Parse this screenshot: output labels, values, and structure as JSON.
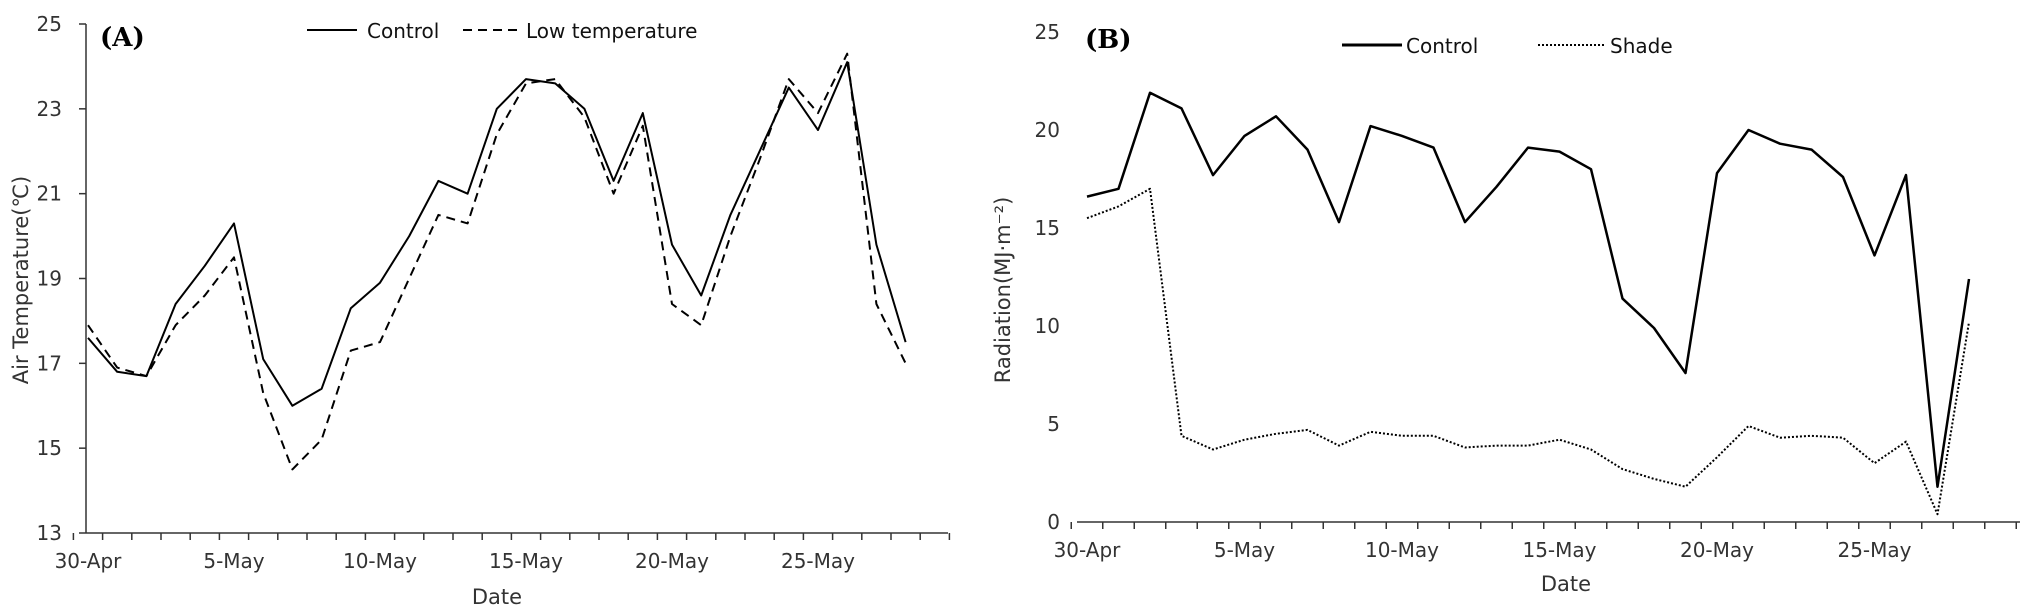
{
  "chart_data": [
    {
      "type": "line",
      "panel_label": "(A)",
      "xlabel": "Date",
      "ylabel": "Air Temperature(℃)",
      "ylim": [
        13,
        25
      ],
      "yticks": [
        "13",
        "15",
        "17",
        "19",
        "21",
        "23",
        "25"
      ],
      "xticks": [
        "30-Apr",
        "5-May",
        "10-May",
        "15-May",
        "20-May",
        "25-May"
      ],
      "xtick_indices": [
        0,
        5,
        10,
        15,
        20,
        25
      ],
      "n_points": 30,
      "grid": false,
      "legend_position": "top",
      "series": [
        {
          "name": "Control",
          "style": "solid",
          "values": [
            17.6,
            16.8,
            16.7,
            18.4,
            19.3,
            20.3,
            17.1,
            16.0,
            16.4,
            18.3,
            18.9,
            20.0,
            21.3,
            21.0,
            23.0,
            23.7,
            23.6,
            23.0,
            21.3,
            22.9,
            19.8,
            18.6,
            20.5,
            22.0,
            23.5,
            22.5,
            24.1,
            19.8,
            17.5,
            null
          ]
        },
        {
          "name": "Low temperature",
          "style": "dashed",
          "values": [
            17.9,
            16.9,
            16.7,
            17.9,
            18.6,
            19.5,
            16.3,
            14.5,
            15.2,
            17.3,
            17.5,
            19.0,
            20.5,
            20.3,
            22.4,
            23.6,
            23.7,
            22.8,
            21.0,
            22.6,
            18.4,
            17.9,
            20.0,
            21.8,
            23.7,
            22.9,
            24.3,
            18.4,
            17.0,
            null
          ]
        }
      ]
    },
    {
      "type": "line",
      "panel_label": "(B)",
      "xlabel": "Date",
      "ylabel": "Radiation(MJ·m⁻²)",
      "ylim": [
        0,
        25
      ],
      "yticks": [
        "0",
        "5",
        "10",
        "15",
        "20",
        "25"
      ],
      "xticks": [
        "30-Apr",
        "5-May",
        "10-May",
        "15-May",
        "20-May",
        "25-May"
      ],
      "xtick_indices": [
        0,
        5,
        10,
        15,
        20,
        25
      ],
      "n_points": 30,
      "grid": false,
      "legend_position": "top",
      "series": [
        {
          "name": "Control",
          "style": "solid",
          "values": [
            16.6,
            17.0,
            21.9,
            21.1,
            17.7,
            19.7,
            20.7,
            19.0,
            15.3,
            20.2,
            19.7,
            19.1,
            15.3,
            17.1,
            19.1,
            18.9,
            18.0,
            11.4,
            9.9,
            7.6,
            17.8,
            20.0,
            19.3,
            19.0,
            17.6,
            13.6,
            17.7,
            1.8,
            12.4,
            null
          ]
        },
        {
          "name": "Shade",
          "style": "dotted",
          "values": [
            15.5,
            16.1,
            17.0,
            4.4,
            3.7,
            4.2,
            4.5,
            4.7,
            3.9,
            4.6,
            4.4,
            4.4,
            3.8,
            3.9,
            3.9,
            4.2,
            3.7,
            2.7,
            2.2,
            1.8,
            3.3,
            4.9,
            4.3,
            4.4,
            4.3,
            3.0,
            4.1,
            0.4,
            10.2,
            null
          ]
        }
      ]
    }
  ]
}
